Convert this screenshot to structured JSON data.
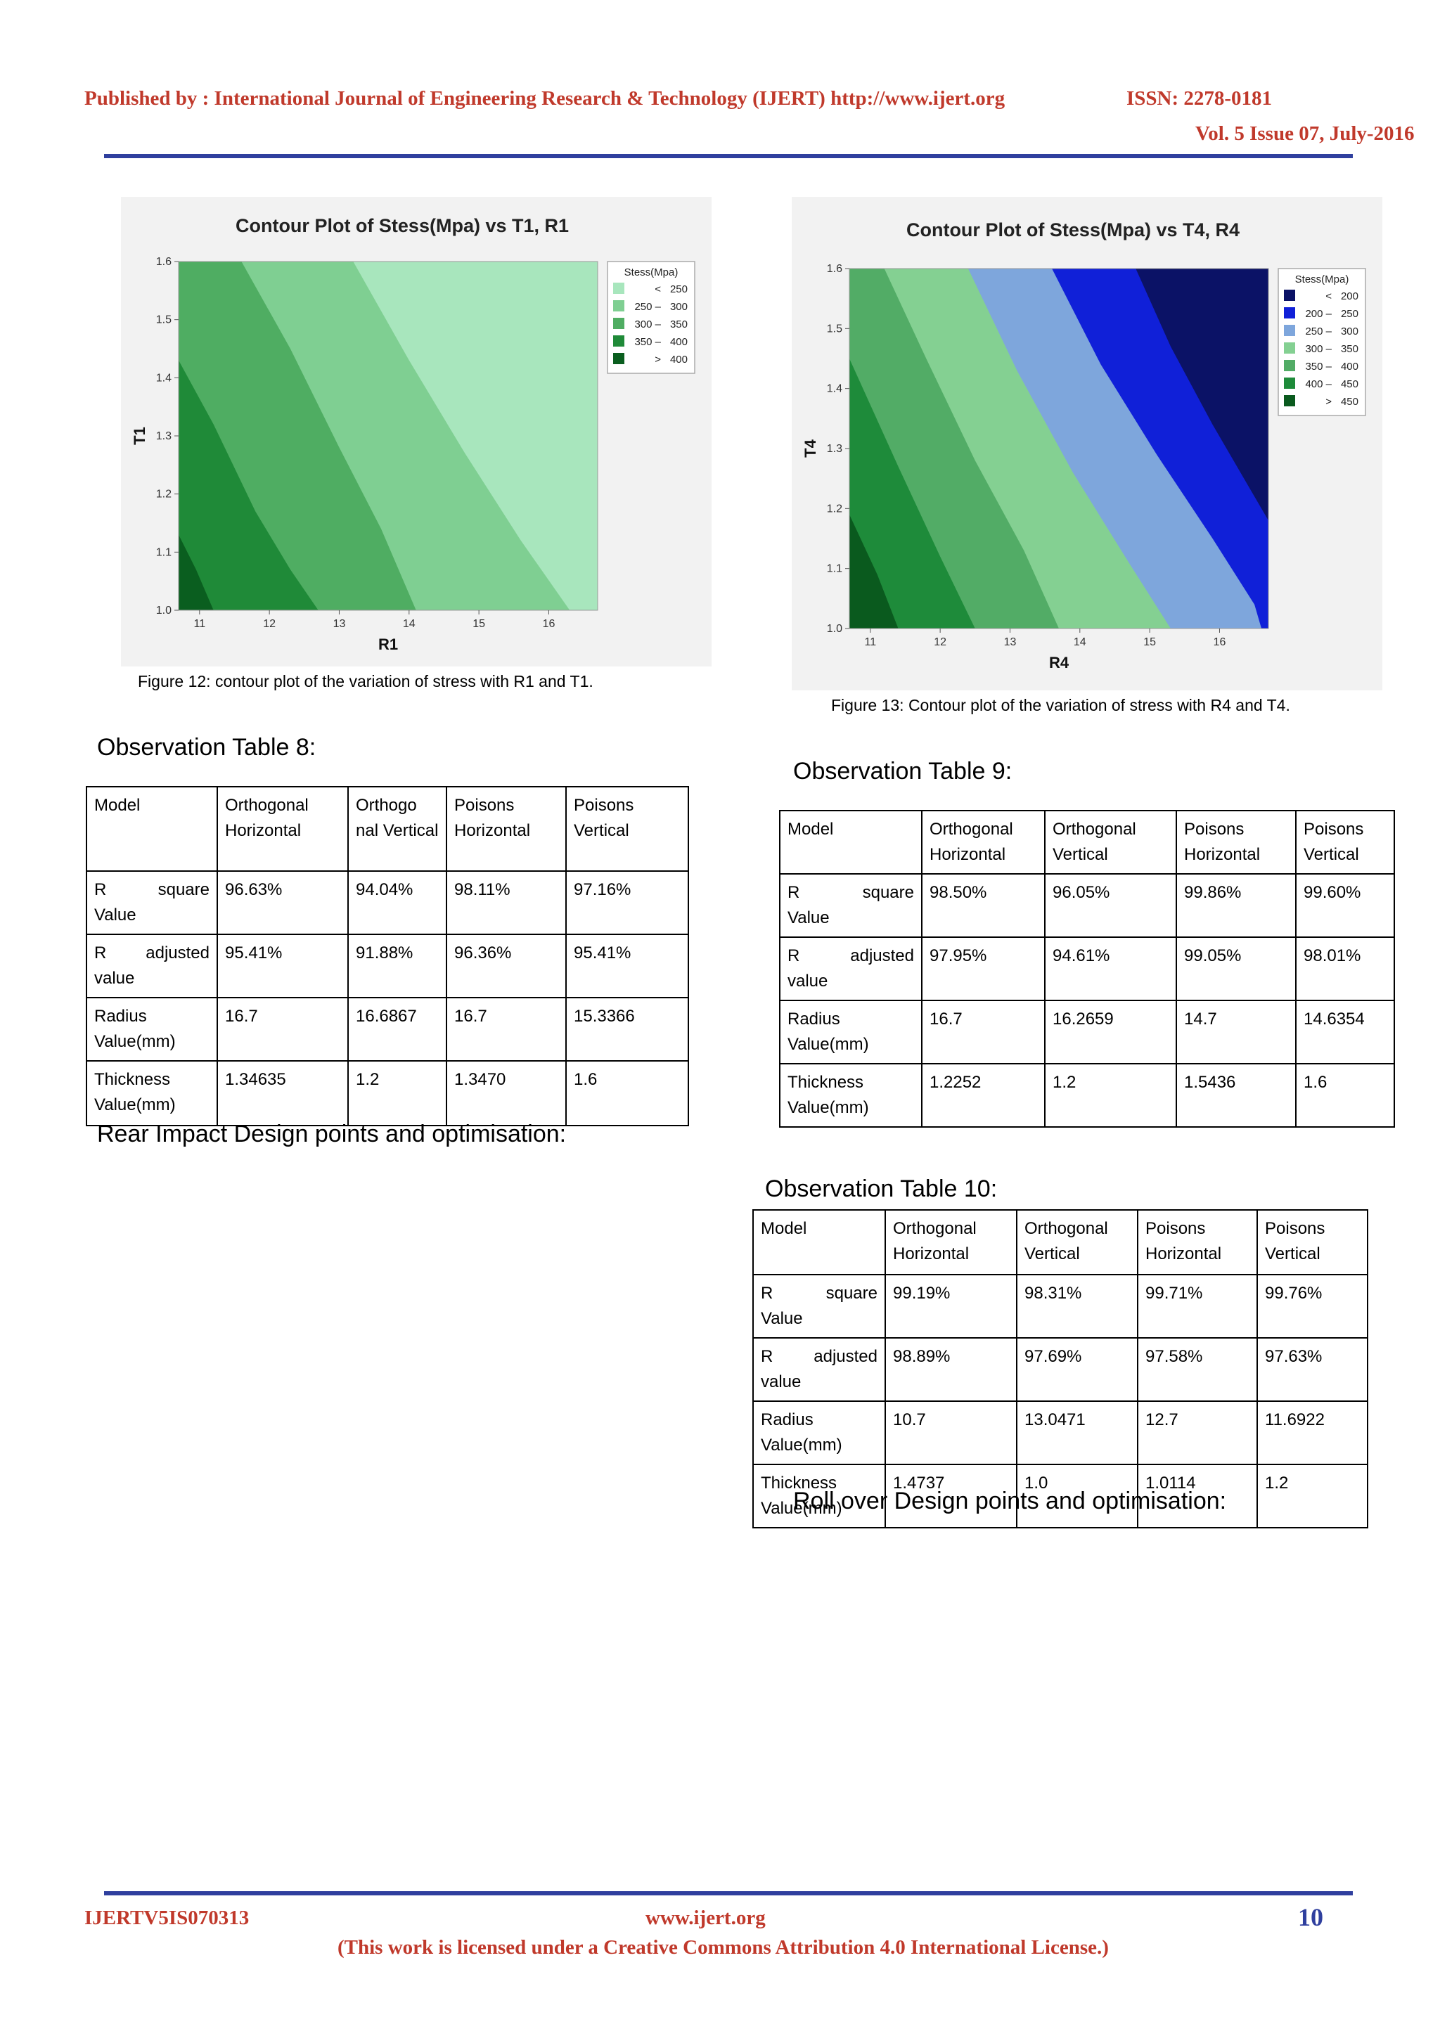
{
  "header": {
    "publisher": "Published by : International Journal of Engineering Research & Technology (IJERT) http://www.ijert.org",
    "issn": "ISSN: 2278-0181",
    "volume": "Vol. 5 Issue 07, July-2016"
  },
  "figure12": {
    "caption": "Figure 12: contour plot of the variation of stress with R1 and T1.",
    "chart_data": {
      "type": "heatmap",
      "title": "Contour Plot of Stess(Mpa) vs T1, R1",
      "xlabel": "R1",
      "ylabel": "T1",
      "x_ticks": [
        "11",
        "12",
        "13",
        "14",
        "15",
        "16"
      ],
      "y_ticks": [
        "1.0",
        "1.1",
        "1.2",
        "1.3",
        "1.4",
        "1.5",
        "1.6"
      ],
      "xlim": [
        10.7,
        16.7
      ],
      "ylim": [
        1.0,
        1.6
      ],
      "legend_title": "Stess(Mpa)",
      "legend_position": "right",
      "levels": [
        {
          "label": "<",
          "range": "250",
          "color": "#a8e6bd"
        },
        {
          "label": "250 –",
          "range": "300",
          "color": "#7fcf92"
        },
        {
          "label": "300 –",
          "range": "350",
          "color": "#4fad62"
        },
        {
          "label": "350 –",
          "range": "400",
          "color": "#1f8a38"
        },
        {
          "label": ">",
          "range": "400",
          "color": "#0a5e1f"
        }
      ],
      "boundaries": [
        {
          "between": "> 400 / 350 – 400",
          "points": [
            [
              10.7,
              1.13
            ],
            [
              10.95,
              1.07
            ],
            [
              11.2,
              1.0
            ]
          ]
        },
        {
          "between": "350 – 400 / 300 – 350",
          "points": [
            [
              10.7,
              1.43
            ],
            [
              11.2,
              1.32
            ],
            [
              11.8,
              1.17
            ],
            [
              12.3,
              1.07
            ],
            [
              12.7,
              1.0
            ]
          ]
        },
        {
          "between": "300 – 350 / 250 – 300",
          "points": [
            [
              11.6,
              1.6
            ],
            [
              12.3,
              1.45
            ],
            [
              13.0,
              1.28
            ],
            [
              13.6,
              1.14
            ],
            [
              14.1,
              1.0
            ]
          ]
        },
        {
          "between": "250 – 300 / < 250",
          "points": [
            [
              13.2,
              1.6
            ],
            [
              14.0,
              1.43
            ],
            [
              14.8,
              1.27
            ],
            [
              15.6,
              1.12
            ],
            [
              16.3,
              1.0
            ]
          ]
        }
      ]
    }
  },
  "figure13": {
    "caption": "Figure 13: Contour plot of the variation of stress with R4 and T4.",
    "chart_data": {
      "type": "heatmap",
      "title": "Contour Plot of Stess(Mpa) vs T4, R4",
      "xlabel": "R4",
      "ylabel": "T4",
      "x_ticks": [
        "11",
        "12",
        "13",
        "14",
        "15",
        "16"
      ],
      "y_ticks": [
        "1.0",
        "1.1",
        "1.2",
        "1.3",
        "1.4",
        "1.5",
        "1.6"
      ],
      "xlim": [
        10.7,
        16.7
      ],
      "ylim": [
        1.0,
        1.6
      ],
      "legend_title": "Stess(Mpa)",
      "legend_position": "right",
      "levels": [
        {
          "label": "<",
          "range": "200",
          "color": "#0b1266"
        },
        {
          "label": "200 –",
          "range": "250",
          "color": "#1020d8"
        },
        {
          "label": "250 –",
          "range": "300",
          "color": "#7ea6dc"
        },
        {
          "label": "300 –",
          "range": "350",
          "color": "#84d092"
        },
        {
          "label": "350 –",
          "range": "400",
          "color": "#52ac66"
        },
        {
          "label": "400 –",
          "range": "450",
          "color": "#1e8b3a"
        },
        {
          "label": ">",
          "range": "450",
          "color": "#0a5a1e"
        }
      ],
      "boundaries": [
        {
          "between": "> 450 / 400 – 450",
          "points": [
            [
              10.7,
              1.19
            ],
            [
              11.1,
              1.09
            ],
            [
              11.4,
              1.0
            ]
          ]
        },
        {
          "between": "400 – 450 / 350 – 400",
          "points": [
            [
              10.7,
              1.45
            ],
            [
              11.4,
              1.27
            ],
            [
              12.0,
              1.12
            ],
            [
              12.5,
              1.0
            ]
          ]
        },
        {
          "between": "350 – 400 / 300 – 350",
          "points": [
            [
              11.2,
              1.6
            ],
            [
              11.8,
              1.45
            ],
            [
              12.5,
              1.28
            ],
            [
              13.2,
              1.13
            ],
            [
              13.7,
              1.0
            ]
          ]
        },
        {
          "between": "300 – 350 / 250 – 300",
          "points": [
            [
              12.4,
              1.6
            ],
            [
              13.1,
              1.43
            ],
            [
              13.9,
              1.26
            ],
            [
              14.7,
              1.11
            ],
            [
              15.3,
              1.0
            ]
          ]
        },
        {
          "between": "250 – 300 / 200 – 250",
          "points": [
            [
              13.6,
              1.6
            ],
            [
              14.3,
              1.44
            ],
            [
              15.1,
              1.29
            ],
            [
              15.9,
              1.15
            ],
            [
              16.5,
              1.04
            ],
            [
              16.6,
              1.0
            ]
          ]
        },
        {
          "between": "200 – 250 / < 200",
          "points": [
            [
              14.8,
              1.6
            ],
            [
              15.3,
              1.47
            ],
            [
              15.9,
              1.34
            ],
            [
              16.4,
              1.24
            ],
            [
              16.7,
              1.18
            ]
          ]
        }
      ]
    }
  },
  "table8": {
    "heading": "Observation Table 8:",
    "header": [
      "Model",
      "Orthogonal Horizontal",
      "Orthogo nal Vertical",
      "Poisons Horizontal",
      "Poisons Vertical"
    ],
    "rows": [
      {
        "label_a": "R",
        "label_b": "square",
        "label_c": "Value",
        "values": [
          "96.63%",
          "94.04%",
          "98.11%",
          "97.16%"
        ]
      },
      {
        "label_a": "R",
        "label_b": "adjusted",
        "label_c": "value",
        "values": [
          "95.41%",
          "91.88%",
          "96.36%",
          "95.41%"
        ]
      },
      {
        "label": "Radius Value(mm)",
        "values": [
          "16.7",
          "16.6867",
          "16.7",
          "15.3366"
        ]
      },
      {
        "label": "Thickness Value(mm)",
        "values": [
          "1.34635",
          "1.2",
          "1.3470",
          "1.6"
        ]
      }
    ]
  },
  "table9": {
    "heading": "Observation Table 9:",
    "header": [
      "Model",
      "Orthogonal Horizontal",
      "Orthogonal Vertical",
      "Poisons Horizontal",
      "Poisons Vertical"
    ],
    "rows": [
      {
        "label_a": "R",
        "label_b": "square",
        "label_c": "Value",
        "values": [
          "98.50%",
          "96.05%",
          "99.86%",
          "99.60%"
        ]
      },
      {
        "label_a": "R",
        "label_b": "adjusted",
        "label_c": "value",
        "values": [
          "97.95%",
          "94.61%",
          "99.05%",
          "98.01%"
        ]
      },
      {
        "label": "Radius Value(mm)",
        "values": [
          "16.7",
          "16.2659",
          "14.7",
          "14.6354"
        ]
      },
      {
        "label": "Thickness Value(mm)",
        "values": [
          "1.2252",
          "1.2",
          "1.5436",
          "1.6"
        ]
      }
    ]
  },
  "table10": {
    "heading": "Observation Table 10:",
    "header": [
      "Model",
      "Orthogonal Horizontal",
      "Orthogonal Vertical",
      "Poisons Horizontal",
      "Poisons Vertical"
    ],
    "rows": [
      {
        "label_a": "R",
        "label_b": "square",
        "label_c": "Value",
        "values": [
          "99.19%",
          "98.31%",
          "99.71%",
          "99.76%"
        ]
      },
      {
        "label_a": "R",
        "label_b": "adjusted",
        "label_c": "value",
        "values": [
          "98.89%",
          "97.69%",
          "97.58%",
          "97.63%"
        ]
      },
      {
        "label": "Radius Value(mm)",
        "values": [
          "10.7",
          "13.0471",
          "12.7",
          "11.6922"
        ]
      },
      {
        "label": "Thickness Value(mm)",
        "values": [
          "1.4737",
          "1.0",
          "1.0114",
          "1.2"
        ]
      }
    ]
  },
  "sections": {
    "rear_impact": "Rear Impact Design points and optimisation:",
    "roll_over": "Roll over Design points and optimisation:"
  },
  "footer": {
    "paper_id": "IJERTV5IS070313",
    "site": "www.ijert.org",
    "page_number": "10",
    "license": "(This work is licensed under a Creative Commons Attribution 4.0 International License.)"
  }
}
